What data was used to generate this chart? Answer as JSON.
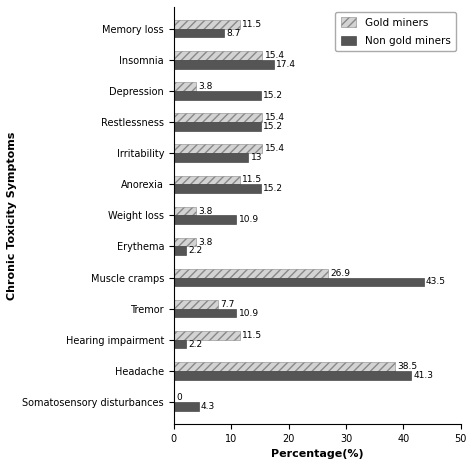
{
  "categories": [
    "Somatosensory disturbances",
    "Headache",
    "Hearing impairment",
    "Tremor",
    "Muscle cramps",
    "Erythema",
    "Weight loss",
    "Anorexia",
    "Irritability",
    "Restlessness",
    "Depression",
    "Insomnia",
    "Memory loss"
  ],
  "gold_miners": [
    0,
    38.5,
    11.5,
    7.7,
    26.9,
    3.8,
    3.8,
    11.5,
    15.4,
    15.4,
    3.8,
    15.4,
    11.5
  ],
  "non_gold_miners": [
    4.3,
    41.3,
    2.2,
    10.9,
    43.5,
    2.2,
    10.9,
    15.2,
    13,
    15.2,
    15.2,
    17.4,
    8.7
  ],
  "gold_color": "#d3d3d3",
  "non_gold_color": "#555555",
  "xlabel": "Percentage(%)",
  "ylabel": "Chronic Toxicity Symptoms",
  "xlim": [
    0,
    50
  ],
  "xticks": [
    0,
    10,
    20,
    30,
    40,
    50
  ],
  "legend_gold": "Gold miners",
  "legend_non_gold": "Non gold miners",
  "bar_height": 0.28,
  "label_fontsize": 8,
  "tick_fontsize": 7,
  "annotation_fontsize": 6.5,
  "legend_fontsize": 7.5
}
